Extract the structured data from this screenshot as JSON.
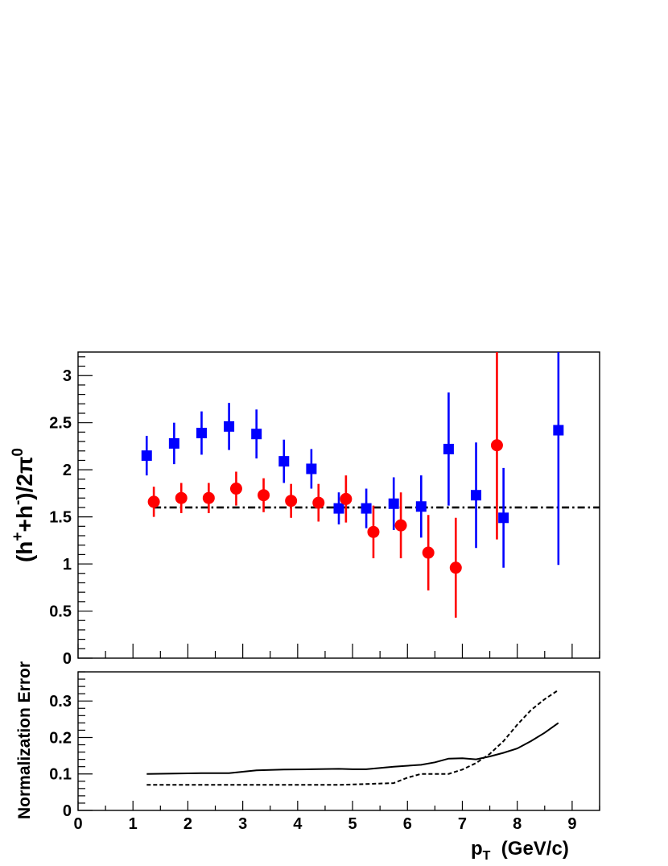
{
  "chart_data": [
    {
      "type": "scatter",
      "ylabel": "(h⁺+h⁻)/2π⁰",
      "ylabel_parts": {
        "base1": "(h",
        "sup1": "+",
        "base2": "+h",
        "sup2": "-",
        "base3": ")/2π",
        "sup3": "0"
      },
      "xlim": [
        0,
        9.5
      ],
      "ylim": [
        0,
        3.25
      ],
      "x_ticks": [
        "0",
        "1",
        "2",
        "3",
        "4",
        "5",
        "6",
        "7",
        "8",
        "9"
      ],
      "y_ticks": [
        "0",
        "0.5",
        "1",
        "1.5",
        "2",
        "2.5",
        "3"
      ],
      "y_tick_values": [
        0,
        0.5,
        1,
        1.5,
        2,
        2.5,
        3
      ],
      "grid": false,
      "series": [
        {
          "marker": "square",
          "color": "#0000ff",
          "points": [
            {
              "x": 1.25,
              "y": 2.15,
              "err": 0.21
            },
            {
              "x": 1.75,
              "y": 2.28,
              "err": 0.22
            },
            {
              "x": 2.25,
              "y": 2.39,
              "err": 0.23
            },
            {
              "x": 2.75,
              "y": 2.46,
              "err": 0.25
            },
            {
              "x": 3.25,
              "y": 2.38,
              "err": 0.26
            },
            {
              "x": 3.75,
              "y": 2.09,
              "err": 0.23
            },
            {
              "x": 4.25,
              "y": 2.01,
              "err": 0.21
            },
            {
              "x": 4.75,
              "y": 1.59,
              "err": 0.17
            },
            {
              "x": 5.25,
              "y": 1.59,
              "err": 0.21
            },
            {
              "x": 5.75,
              "y": 1.64,
              "err": 0.28
            },
            {
              "x": 6.25,
              "y": 1.61,
              "err": 0.33
            },
            {
              "x": 6.75,
              "y": 2.22,
              "err": 0.6
            },
            {
              "x": 7.25,
              "y": 1.73,
              "err": 0.56
            },
            {
              "x": 7.75,
              "y": 1.49,
              "err": 0.53
            },
            {
              "x": 8.75,
              "y": 2.42,
              "err": 1.43
            }
          ]
        },
        {
          "marker": "circle",
          "color": "#ff0000",
          "points": [
            {
              "x": 1.38,
              "y": 1.66,
              "err": 0.16
            },
            {
              "x": 1.88,
              "y": 1.7,
              "err": 0.16
            },
            {
              "x": 2.38,
              "y": 1.7,
              "err": 0.16
            },
            {
              "x": 2.88,
              "y": 1.8,
              "err": 0.18
            },
            {
              "x": 3.38,
              "y": 1.73,
              "err": 0.18
            },
            {
              "x": 3.88,
              "y": 1.67,
              "err": 0.18
            },
            {
              "x": 4.38,
              "y": 1.65,
              "err": 0.2
            },
            {
              "x": 4.88,
              "y": 1.69,
              "err": 0.25
            },
            {
              "x": 5.38,
              "y": 1.34,
              "err": 0.28
            },
            {
              "x": 5.88,
              "y": 1.41,
              "err": 0.35
            },
            {
              "x": 6.38,
              "y": 1.12,
              "err": 0.4
            },
            {
              "x": 6.88,
              "y": 0.96,
              "err": 0.53
            },
            {
              "x": 7.63,
              "y": 2.26,
              "err": 1.0,
              "err_up_clip": true
            }
          ]
        }
      ],
      "reference_line": {
        "y": 1.6,
        "x": [
          1.38,
          9.5
        ],
        "style": "dash-dot"
      }
    },
    {
      "type": "line",
      "ylabel": "Normalization Error",
      "xlabel": "p_T (GeV/c)",
      "xlabel_parts": {
        "p": "p",
        "sub": "T",
        "rest": "  (GeV/c)"
      },
      "xlim": [
        0,
        9.5
      ],
      "ylim": [
        0,
        0.38
      ],
      "x_ticks": [
        "0",
        "1",
        "2",
        "3",
        "4",
        "5",
        "6",
        "7",
        "8",
        "9"
      ],
      "x_tick_values": [
        0,
        1,
        2,
        3,
        4,
        5,
        6,
        7,
        8,
        9
      ],
      "y_ticks": [
        "0",
        "0.1",
        "0.2",
        "0.3"
      ],
      "y_tick_values": [
        0,
        0.1,
        0.2,
        0.3
      ],
      "grid": false,
      "series": [
        {
          "style": "solid",
          "color": "#000000",
          "x": [
            1.25,
            1.75,
            2.25,
            2.75,
            3.0,
            3.25,
            3.75,
            4.25,
            4.75,
            5.0,
            5.25,
            5.75,
            6.25,
            6.5,
            6.75,
            7.0,
            7.25,
            7.5,
            7.75,
            8.0,
            8.25,
            8.5,
            8.75
          ],
          "y": [
            0.1,
            0.101,
            0.102,
            0.102,
            0.106,
            0.11,
            0.112,
            0.113,
            0.114,
            0.113,
            0.113,
            0.12,
            0.125,
            0.132,
            0.142,
            0.143,
            0.14,
            0.148,
            0.158,
            0.17,
            0.19,
            0.213,
            0.24
          ]
        },
        {
          "style": "dashed",
          "color": "#000000",
          "x": [
            1.25,
            4.75,
            5.75,
            6.0,
            6.25,
            6.75,
            7.0,
            7.25,
            7.5,
            7.75,
            8.0,
            8.25,
            8.5,
            8.75
          ],
          "y": [
            0.07,
            0.07,
            0.075,
            0.09,
            0.1,
            0.1,
            0.112,
            0.13,
            0.155,
            0.19,
            0.235,
            0.275,
            0.305,
            0.33
          ]
        }
      ]
    }
  ]
}
